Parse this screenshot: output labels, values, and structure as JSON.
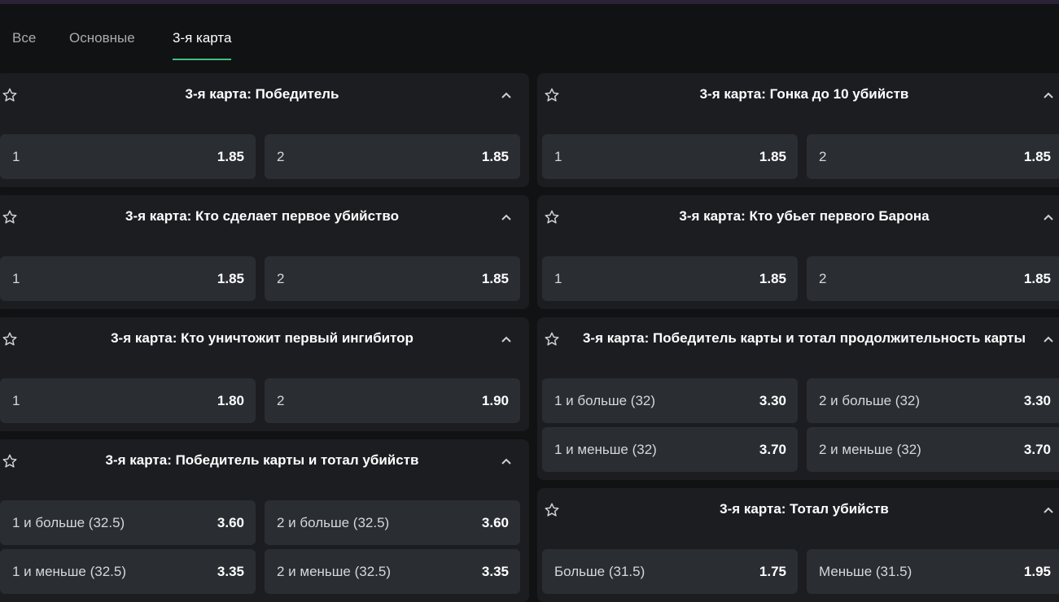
{
  "tabs": [
    "Все",
    "Основные",
    "3-я карта"
  ],
  "active_tab": 2,
  "columns": [
    [
      {
        "title": "3-я карта: Победитель",
        "options": [
          {
            "label": "1",
            "odds": "1.85"
          },
          {
            "label": "2",
            "odds": "1.85"
          }
        ]
      },
      {
        "title": "3-я карта: Кто сделает первое убийство",
        "options": [
          {
            "label": "1",
            "odds": "1.85"
          },
          {
            "label": "2",
            "odds": "1.85"
          }
        ]
      },
      {
        "title": "3-я карта: Кто уничтожит первый ингибитор",
        "options": [
          {
            "label": "1",
            "odds": "1.80"
          },
          {
            "label": "2",
            "odds": "1.90"
          }
        ]
      },
      {
        "title": "3-я карта: Победитель карты и тотал убийств",
        "options": [
          {
            "label": "1 и больше (32.5)",
            "odds": "3.60"
          },
          {
            "label": "2 и больше (32.5)",
            "odds": "3.60"
          },
          {
            "label": "1 и меньше (32.5)",
            "odds": "3.35"
          },
          {
            "label": "2 и меньше (32.5)",
            "odds": "3.35"
          }
        ]
      }
    ],
    [
      {
        "title": "3-я карта: Гонка до 10 убийств",
        "options": [
          {
            "label": "1",
            "odds": "1.85"
          },
          {
            "label": "2",
            "odds": "1.85"
          }
        ]
      },
      {
        "title": "3-я карта: Кто убьет первого Барона",
        "options": [
          {
            "label": "1",
            "odds": "1.85"
          },
          {
            "label": "2",
            "odds": "1.85"
          }
        ]
      },
      {
        "title": "3-я карта: Победитель карты и тотал продолжительность карты",
        "options": [
          {
            "label": "1 и больше (32)",
            "odds": "3.30"
          },
          {
            "label": "2 и больше (32)",
            "odds": "3.30"
          },
          {
            "label": "1 и меньше (32)",
            "odds": "3.70"
          },
          {
            "label": "2 и меньше (32)",
            "odds": "3.70"
          }
        ]
      },
      {
        "title": "3-я карта: Тотал убийств",
        "options": [
          {
            "label": "Больше (31.5)",
            "odds": "1.75"
          },
          {
            "label": "Меньше (31.5)",
            "odds": "1.95"
          }
        ]
      }
    ]
  ]
}
